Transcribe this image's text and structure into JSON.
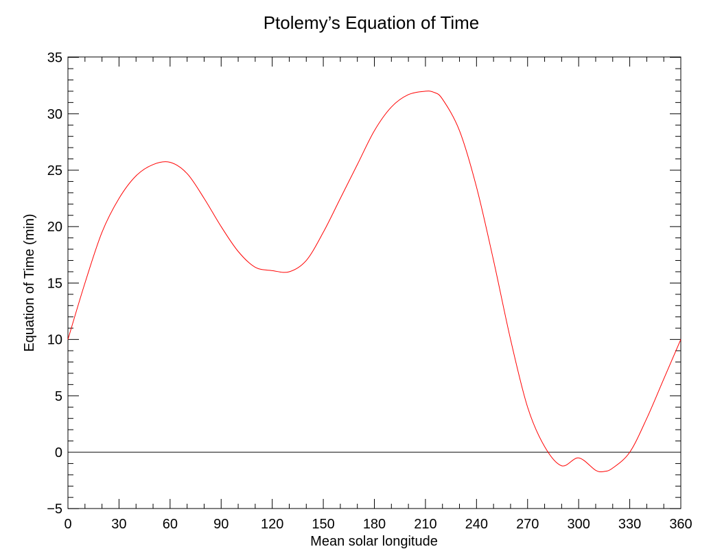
{
  "chart_data": {
    "type": "line",
    "title": "Ptolemy’s Equation of Time",
    "xlabel": "Mean solar longitude",
    "ylabel": "Equation of Time (min)",
    "xlim": [
      0,
      360
    ],
    "ylim": [
      -6,
      35
    ],
    "xticks": [
      0,
      30,
      60,
      90,
      120,
      150,
      180,
      210,
      240,
      270,
      300,
      330,
      360
    ],
    "xtick_labels": [
      "0",
      "30",
      "60",
      "90",
      "120",
      "150",
      "180",
      "210",
      "240",
      "270",
      "300",
      "330",
      "360"
    ],
    "yticks": [
      -5,
      0,
      5,
      10,
      15,
      20,
      25,
      30,
      35
    ],
    "ytick_labels": [
      "−5",
      "0",
      "5",
      "10",
      "15",
      "20",
      "25",
      "30",
      "35"
    ],
    "grid": false,
    "reference_line": {
      "y": 0,
      "color": "#000000"
    },
    "series": [
      {
        "color": "#ff0000",
        "x": [
          0,
          10,
          20,
          30,
          40,
          50,
          60,
          70,
          80,
          90,
          100,
          110,
          120,
          130,
          140,
          150,
          160,
          170,
          180,
          190,
          200,
          210,
          215,
          220,
          230,
          240,
          250,
          260,
          270,
          280,
          290,
          300,
          310,
          315,
          320,
          330,
          340,
          350,
          360
        ],
        "y": [
          10.0,
          15.0,
          19.5,
          22.5,
          24.5,
          25.5,
          25.7,
          24.7,
          22.5,
          20.0,
          17.8,
          16.4,
          16.1,
          16.0,
          17.0,
          19.5,
          22.5,
          25.5,
          28.5,
          30.6,
          31.7,
          32.0,
          31.9,
          31.3,
          28.5,
          23.5,
          17.0,
          10.0,
          4.0,
          0.5,
          -1.2,
          -0.5,
          -1.6,
          -1.7,
          -1.4,
          0.0,
          3.0,
          6.5,
          10.0
        ]
      }
    ]
  }
}
